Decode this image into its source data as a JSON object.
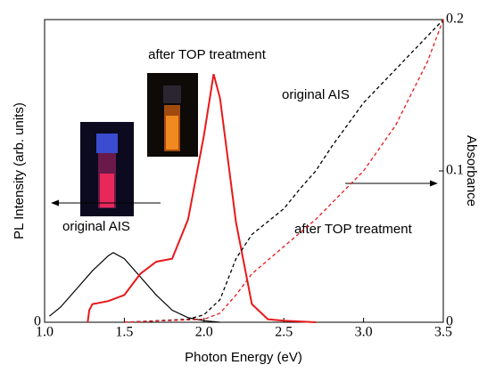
{
  "chart_data": {
    "type": "line",
    "xlabel": "Photon Energy    (eV)",
    "ylabel": "PL Intensity (arb. units)",
    "y2label": "Absorbance",
    "xlim": [
      1.0,
      3.5
    ],
    "xticks": [
      {
        "value": 1.0,
        "label": "1.0"
      },
      1.5,
      {
        "value": 2.0,
        "label": "2.0"
      },
      2.5,
      {
        "value": 3.0,
        "label": "3.0"
      },
      3.5
    ],
    "ylim": [
      0,
      1
    ],
    "yticks": [
      0
    ],
    "y2lim": [
      0,
      0.2
    ],
    "y2ticks": [
      0,
      0.1,
      0.2
    ],
    "annotations": [
      "after TOP treatment",
      "original AIS",
      "original AIS",
      "after TOP treatment"
    ],
    "series": [
      {
        "color": "#000000",
        "dash": false,
        "axis": "y",
        "x": [
          1.03,
          1.1,
          1.2,
          1.3,
          1.4,
          1.43,
          1.5,
          1.6,
          1.7,
          1.8,
          1.9,
          2.0,
          2.1
        ],
        "values": [
          0.02,
          0.05,
          0.11,
          0.17,
          0.22,
          0.23,
          0.21,
          0.15,
          0.09,
          0.04,
          0.015,
          0.005,
          0
        ]
      },
      {
        "color": "#e8191b",
        "dash": false,
        "axis": "y",
        "x": [
          1.27,
          1.28,
          1.3,
          1.4,
          1.5,
          1.6,
          1.7,
          1.8,
          1.9,
          2.0,
          2.06,
          2.1,
          2.2,
          2.3,
          2.4,
          2.5,
          2.7
        ],
        "values": [
          0,
          0.04,
          0.06,
          0.07,
          0.09,
          0.16,
          0.2,
          0.21,
          0.34,
          0.62,
          0.82,
          0.74,
          0.33,
          0.06,
          0.01,
          0.005,
          0
        ]
      },
      {
        "color": "#000000",
        "dash": true,
        "axis": "y2",
        "x": [
          1.5,
          1.9,
          2.0,
          2.1,
          2.2,
          2.3,
          2.5,
          2.6,
          2.7,
          2.8,
          3.0,
          3.5
        ],
        "values": [
          0,
          0.002,
          0.005,
          0.015,
          0.042,
          0.058,
          0.075,
          0.088,
          0.1,
          0.116,
          0.145,
          0.2
        ]
      },
      {
        "color": "#e8191b",
        "dash": true,
        "axis": "y2",
        "x": [
          1.5,
          2.0,
          2.1,
          2.2,
          2.3,
          2.5,
          2.7,
          3.0,
          3.2,
          3.4,
          3.5
        ],
        "values": [
          0,
          0.002,
          0.006,
          0.018,
          0.032,
          0.05,
          0.068,
          0.1,
          0.13,
          0.172,
          0.2
        ]
      }
    ]
  }
}
